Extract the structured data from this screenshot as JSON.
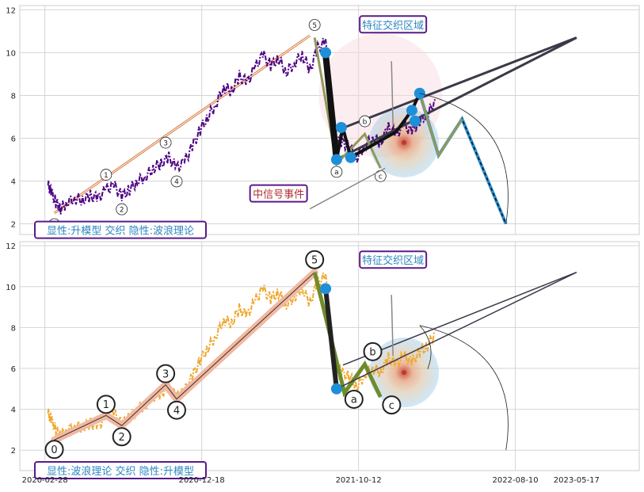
{
  "chart_data": [
    {
      "type": "line",
      "panel": "top",
      "ylim": [
        1.5,
        12.2
      ],
      "yticks": [
        2,
        4,
        6,
        8,
        10,
        12
      ],
      "grid": true,
      "price_color": "#4b0082",
      "caption": "显性:升模型 交织 隐性:波浪理论",
      "callout_title": "特征交织区域",
      "callout_event": "中信号事件",
      "price_series": [
        [
          2020.18,
          3.8
        ],
        [
          2020.2,
          3.5
        ],
        [
          2020.23,
          3.0
        ],
        [
          2020.26,
          2.7
        ],
        [
          2020.3,
          3.0
        ],
        [
          2020.35,
          3.2
        ],
        [
          2020.4,
          3.1
        ],
        [
          2020.45,
          3.3
        ],
        [
          2020.5,
          3.2
        ],
        [
          2020.55,
          3.6
        ],
        [
          2020.6,
          3.8
        ],
        [
          2020.65,
          3.3
        ],
        [
          2020.7,
          3.6
        ],
        [
          2020.75,
          4.0
        ],
        [
          2020.8,
          4.2
        ],
        [
          2020.85,
          4.6
        ],
        [
          2020.9,
          4.8
        ],
        [
          2020.95,
          5.1
        ],
        [
          2021.0,
          4.6
        ],
        [
          2021.05,
          4.9
        ],
        [
          2021.1,
          5.6
        ],
        [
          2021.15,
          6.4
        ],
        [
          2021.2,
          7.0
        ],
        [
          2021.25,
          7.6
        ],
        [
          2021.3,
          8.4
        ],
        [
          2021.35,
          8.2
        ],
        [
          2021.4,
          8.9
        ],
        [
          2021.45,
          8.6
        ],
        [
          2021.5,
          9.3
        ],
        [
          2021.55,
          9.9
        ],
        [
          2021.6,
          9.4
        ],
        [
          2021.65,
          9.7
        ],
        [
          2021.7,
          9.1
        ],
        [
          2021.75,
          9.5
        ],
        [
          2021.8,
          9.9
        ],
        [
          2021.85,
          9.2
        ],
        [
          2021.9,
          10.2
        ],
        [
          2021.95,
          10.5
        ],
        [
          2022.0,
          6.3
        ],
        [
          2022.05,
          5.8
        ],
        [
          2022.1,
          5.6
        ],
        [
          2022.15,
          5.1
        ],
        [
          2022.2,
          5.7
        ],
        [
          2022.25,
          6.0
        ],
        [
          2022.3,
          5.8
        ],
        [
          2022.35,
          6.5
        ],
        [
          2022.4,
          6.2
        ],
        [
          2022.45,
          6.6
        ],
        [
          2022.5,
          6.3
        ],
        [
          2022.55,
          6.8
        ],
        [
          2022.6,
          7.1
        ],
        [
          2022.65,
          7.8
        ]
      ],
      "models": {
        "up_model": {
          "points": [
            [
              2020.22,
              2.5
            ],
            [
              2021.85,
              10.8
            ]
          ]
        },
        "wave": {
          "labels": [
            "0",
            "1",
            "2",
            "3",
            "4",
            "5",
            "a",
            "b",
            "c"
          ],
          "points": [
            [
              2020.22,
              2.5
            ],
            [
              2020.55,
              3.7
            ],
            [
              2020.65,
              3.2
            ],
            [
              2020.93,
              5.2
            ],
            [
              2021.0,
              4.5
            ],
            [
              2021.88,
              10.7
            ],
            [
              2022.02,
              4.8
            ],
            [
              2022.2,
              6.2
            ],
            [
              2022.3,
              4.6
            ]
          ]
        },
        "fan_origin": [
          2022.02,
          5.0
        ],
        "fan_end": [
          2023.55,
          10.7
        ],
        "projection": [
          [
            2022.55,
            8.1
          ],
          [
            2022.67,
            5.2
          ],
          [
            2022.82,
            6.9
          ],
          [
            2023.1,
            2.0
          ]
        ],
        "hotspot": [
          2022.45,
          5.8
        ]
      }
    },
    {
      "type": "line",
      "panel": "bottom",
      "ylim": [
        1.0,
        12.2
      ],
      "yticks": [
        2,
        4,
        6,
        8,
        10,
        12
      ],
      "grid": true,
      "price_color": "#f0a830",
      "caption": "显性:波浪理论 交织 隐性:升模型",
      "callout_title": "特征交织区域",
      "xticks": [
        "2020-02-28",
        "2020-12-18",
        "2021-10-12",
        "2022-08-10",
        "2023-05-17"
      ],
      "wave": {
        "labels": [
          "0",
          "1",
          "2",
          "3",
          "4",
          "5",
          "a",
          "b",
          "c"
        ],
        "points": [
          [
            2020.22,
            2.5
          ],
          [
            2020.55,
            3.7
          ],
          [
            2020.65,
            3.2
          ],
          [
            2020.93,
            5.2
          ],
          [
            2021.0,
            4.5
          ],
          [
            2021.88,
            10.7
          ],
          [
            2022.07,
            4.8
          ],
          [
            2022.2,
            6.2
          ],
          [
            2022.3,
            4.6
          ]
        ]
      }
    }
  ]
}
